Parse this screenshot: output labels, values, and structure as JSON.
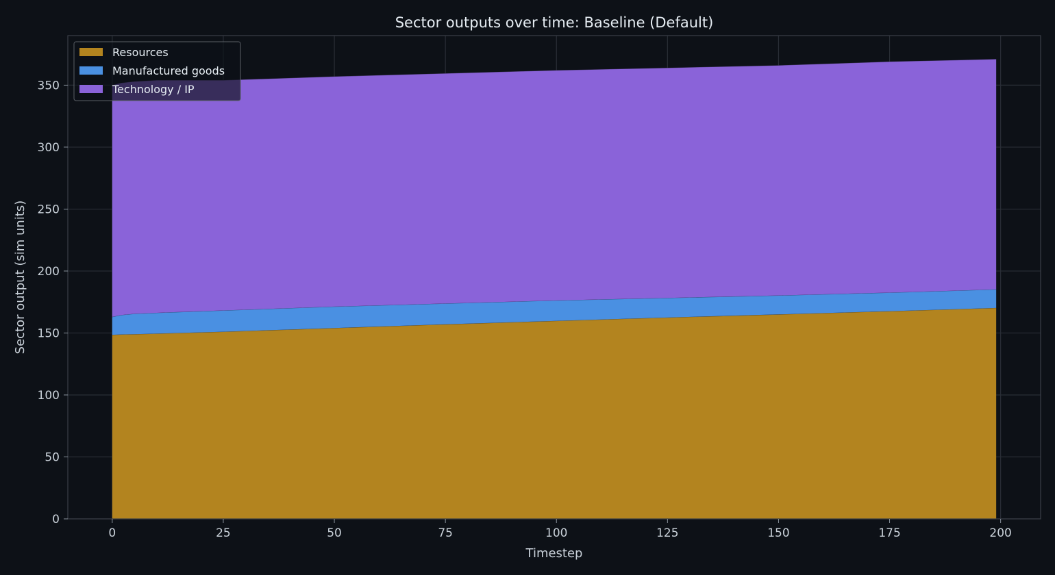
{
  "chart_data": {
    "type": "area",
    "stacked": true,
    "title": "Sector outputs over time: Baseline (Default)",
    "xlabel": "Timestep",
    "ylabel": "Sector output (sim units)",
    "xlim": [
      -10,
      209
    ],
    "ylim": [
      0,
      390
    ],
    "xticks": [
      0,
      25,
      50,
      75,
      100,
      125,
      150,
      175,
      200
    ],
    "yticks": [
      0,
      50,
      100,
      150,
      200,
      250,
      300,
      350
    ],
    "grid": true,
    "legend_position": "top-left",
    "x": [
      0,
      2,
      5,
      10,
      25,
      50,
      75,
      100,
      125,
      150,
      175,
      199
    ],
    "series": [
      {
        "name": "Resources",
        "color": "#b3841f",
        "values": [
          148.5,
          148.8,
          149.0,
          149.5,
          151.0,
          154.0,
          157.0,
          159.8,
          162.5,
          165.0,
          167.6,
          170.2
        ]
      },
      {
        "name": "Manufactured goods",
        "color": "#4a90e2",
        "values": [
          14.5,
          15.7,
          16.5,
          16.8,
          17.2,
          17.3,
          16.8,
          16.5,
          15.8,
          15.3,
          15.0,
          15.0
        ]
      },
      {
        "name": "Technology / IP",
        "color": "#8a63d9",
        "values": [
          187.0,
          187.3,
          187.5,
          187.7,
          185.8,
          185.7,
          185.7,
          185.7,
          185.7,
          185.7,
          186.4,
          185.8
        ]
      }
    ]
  }
}
